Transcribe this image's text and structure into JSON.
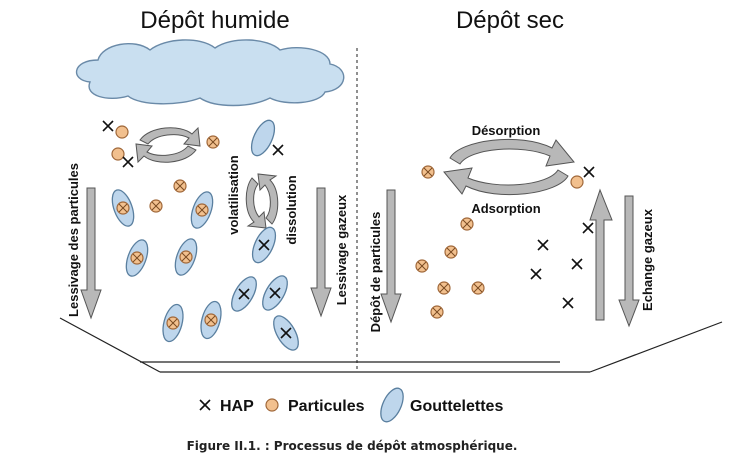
{
  "headings": {
    "wet": "Dépôt humide",
    "dry": "Dépôt sec"
  },
  "labels": {
    "particle_washout": "Lessivage des particules",
    "volatilisation": "volatilisation",
    "dissolution": "dissolution",
    "gas_washout": "Lessivage gazeux",
    "particle_deposition": "Dépôt de particules",
    "desorption": "Désorption",
    "adsorption": "Adsorption",
    "gas_exchange": "Echange gazeux"
  },
  "legend": {
    "hap": "HAP",
    "particles": "Particules",
    "droplets": "Gouttelettes"
  },
  "caption": "Figure II.1. : Processus de dépôt atmosphérique.",
  "colors": {
    "cloud_fill": "#c9dff0",
    "cloud_stroke": "#6a8aa8",
    "droplet_fill": "#bed6ec",
    "droplet_stroke": "#5a7f9f",
    "particle_fill": "#f2c08e",
    "particle_stroke": "#a0683a",
    "arrow_fill": "#b8b8b8",
    "arrow_stroke": "#555555",
    "line": "#222222"
  }
}
